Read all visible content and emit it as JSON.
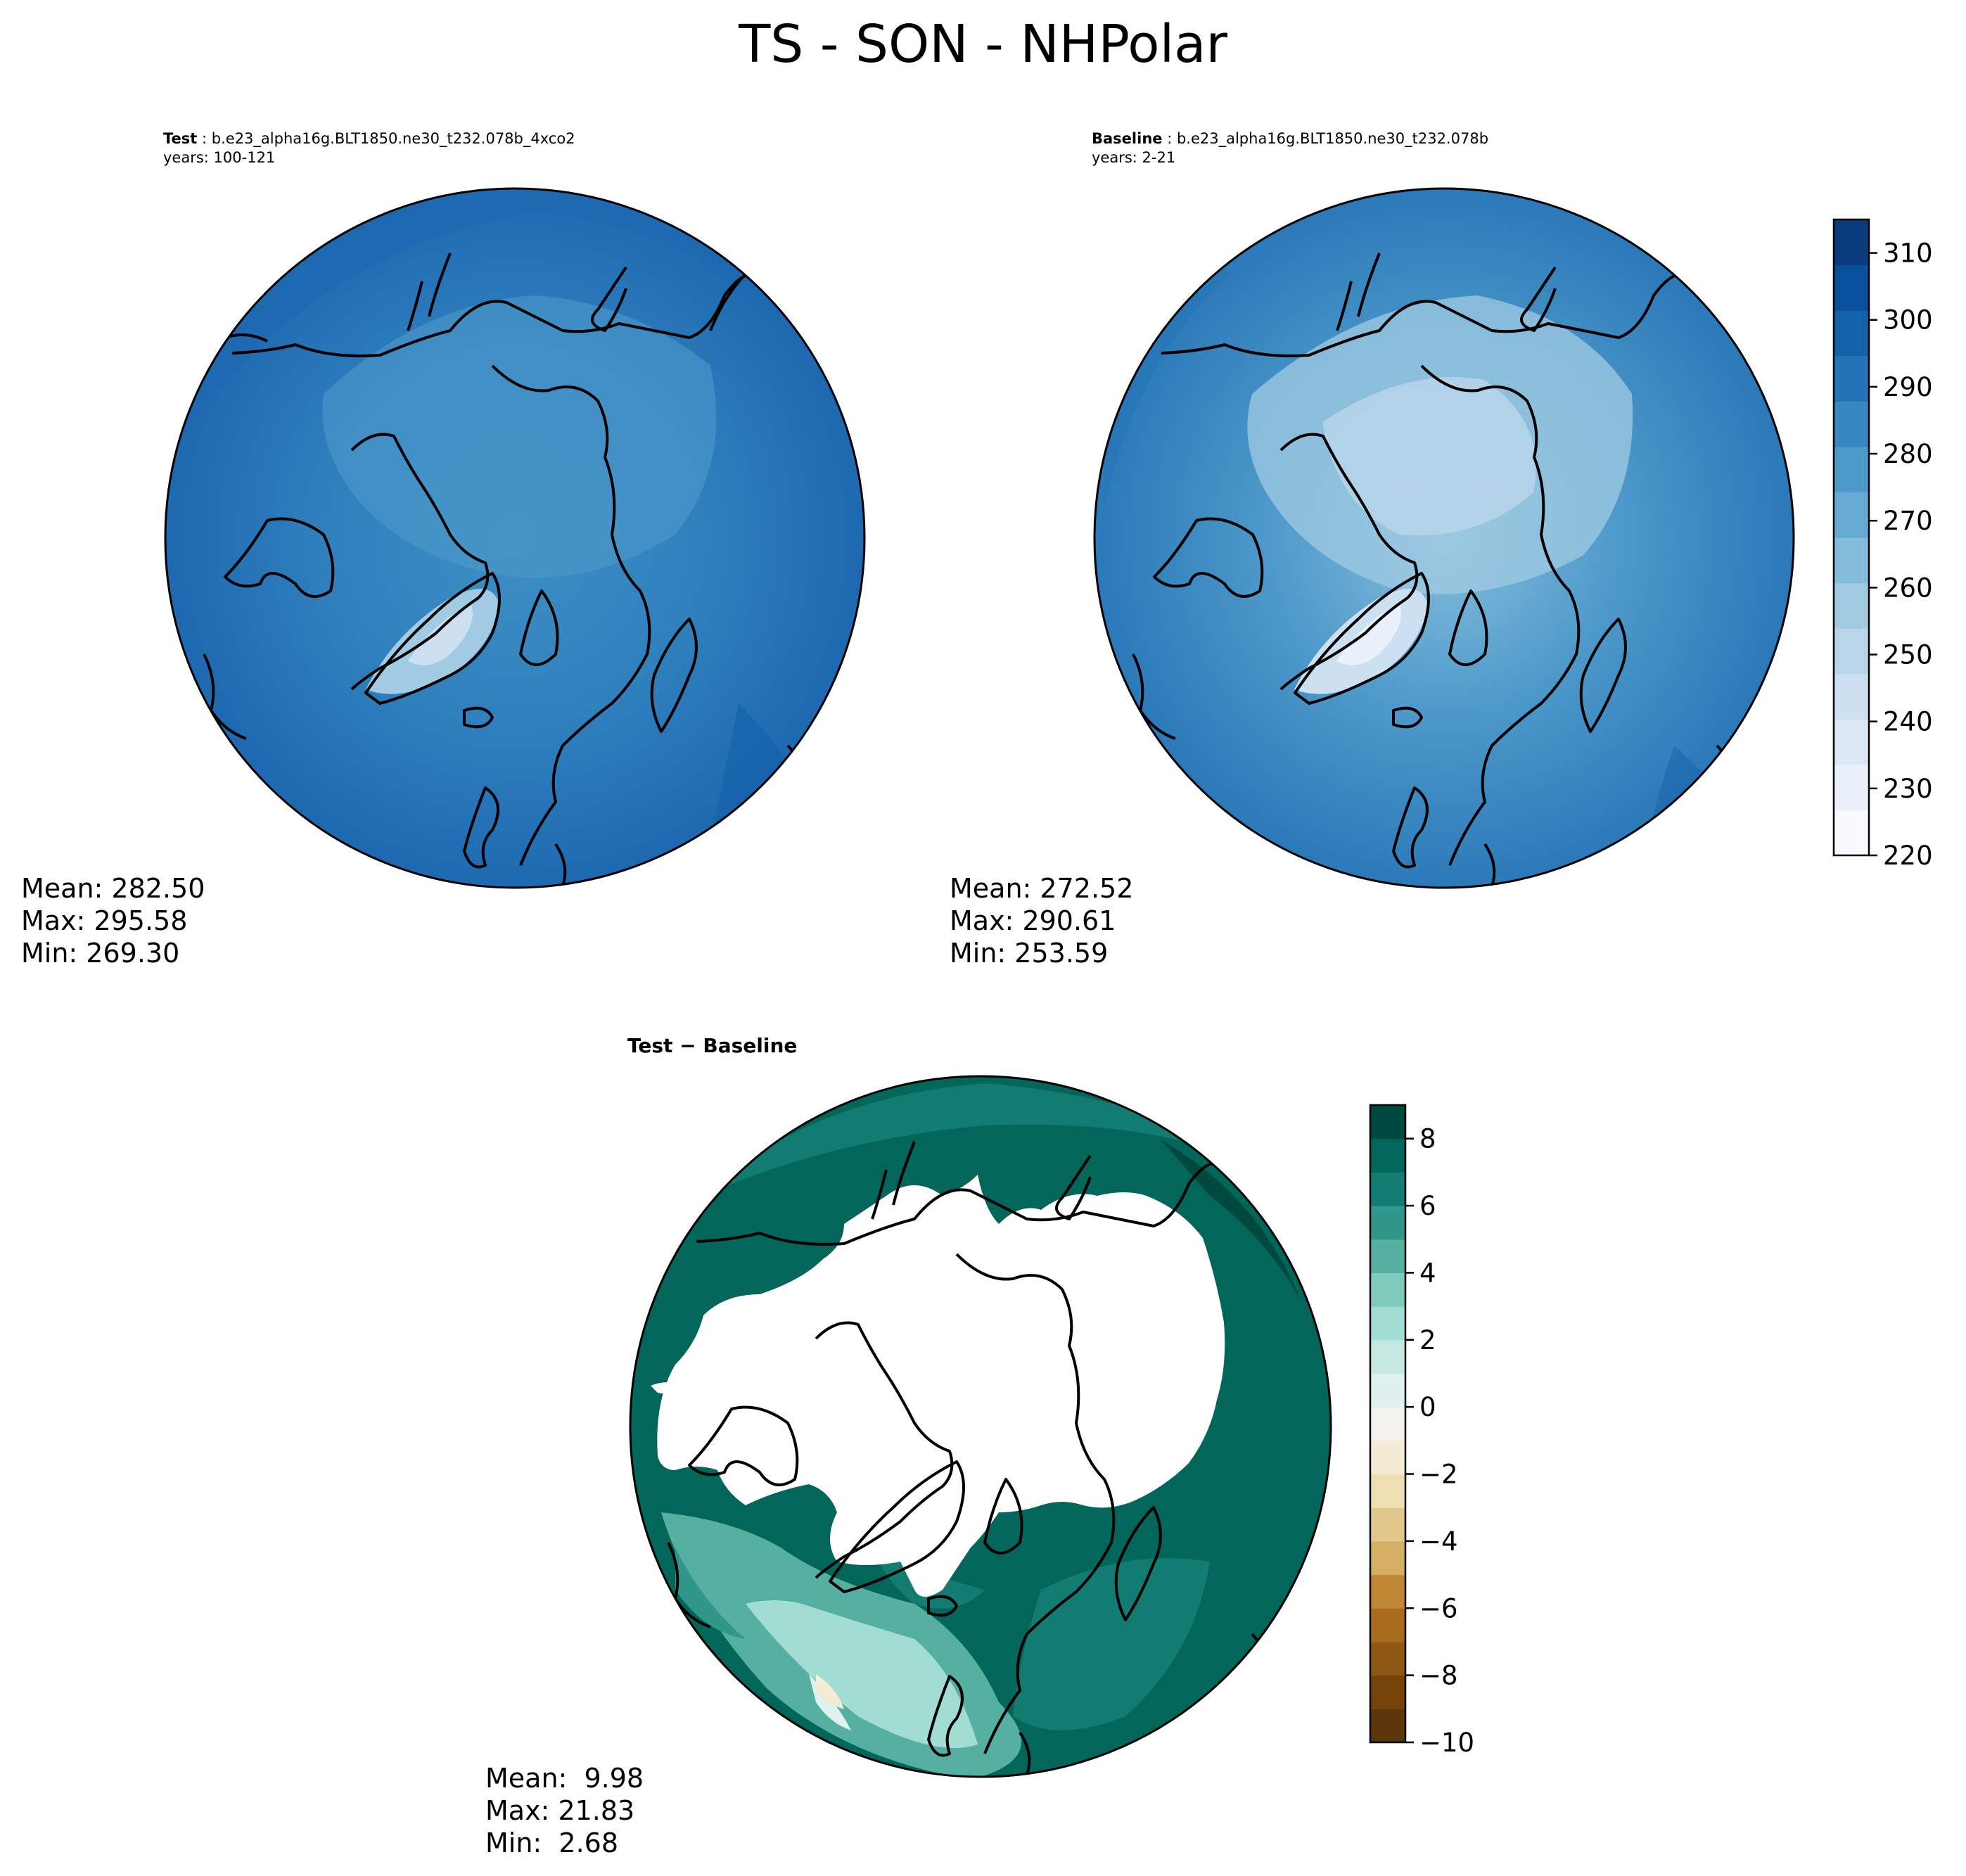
{
  "figure": {
    "title": "TS - SON - NHPolar"
  },
  "panels": {
    "test": {
      "label": "Test",
      "case": "b.e23_alpha16g.BLT1850.ne30_t232.078b_4xco2",
      "years": "years: 100-121",
      "mean": "Mean: 282.50",
      "max": "Max: 295.58",
      "min": "Min: 269.30"
    },
    "baseline": {
      "label": "Baseline",
      "case": "b.e23_alpha16g.BLT1850.ne30_t232.078b",
      "years": "years: 2-21",
      "mean": "Mean: 272.52",
      "max": "Max: 290.61",
      "min": "Min: 253.59"
    },
    "diff": {
      "title": "Test − Baseline",
      "mean": "Mean:  9.98",
      "max": "Max: 21.83",
      "min": "Min:  2.68"
    }
  },
  "chart_data": [
    {
      "type": "heatmap",
      "projection": "north-polar-stereographic",
      "name": "Test",
      "summary": {
        "mean": 282.5,
        "max": 295.58,
        "min": 269.3
      },
      "colormap": "Blues",
      "colorbar_ticks": [
        "220",
        "230",
        "240",
        "250",
        "260",
        "270",
        "280",
        "290",
        "300",
        "310"
      ],
      "colorbar_range": [
        220,
        315
      ]
    },
    {
      "type": "heatmap",
      "projection": "north-polar-stereographic",
      "name": "Baseline",
      "summary": {
        "mean": 272.52,
        "max": 290.61,
        "min": 253.59
      },
      "colormap": "Blues",
      "colorbar_ticks": [
        "220",
        "230",
        "240",
        "250",
        "260",
        "270",
        "280",
        "290",
        "300",
        "310"
      ],
      "colorbar_range": [
        220,
        315
      ]
    },
    {
      "type": "heatmap",
      "projection": "north-polar-stereographic",
      "name": "Test − Baseline",
      "summary": {
        "mean": 9.98,
        "max": 21.83,
        "min": 2.68
      },
      "colormap": "BrBG",
      "colorbar_ticks": [
        "−10",
        "−8",
        "−6",
        "−4",
        "−2",
        "0",
        "2",
        "4",
        "6",
        "8"
      ],
      "colorbar_range": [
        -10,
        9
      ]
    }
  ],
  "colors": {
    "blues": [
      "#f7fbff",
      "#e9f2fb",
      "#dbe9f6",
      "#cde0f1",
      "#bad6eb",
      "#a0cbe2",
      "#84bcdb",
      "#66abd4",
      "#4d99ca",
      "#3787c0",
      "#2373b6",
      "#1361a9",
      "#08509b",
      "#083c7d"
    ],
    "brbg": [
      "#5c3508",
      "#74440a",
      "#8e5713",
      "#a96c1f",
      "#c08735",
      "#d3ae63",
      "#e2c88c",
      "#f0dfb3",
      "#f5ecd6",
      "#f3f2ec",
      "#e1f1ee",
      "#c5e8e2",
      "#a2ddd3",
      "#7ecabb",
      "#56b0a2",
      "#31978b",
      "#137c72",
      "#03665a",
      "#00493f"
    ]
  }
}
